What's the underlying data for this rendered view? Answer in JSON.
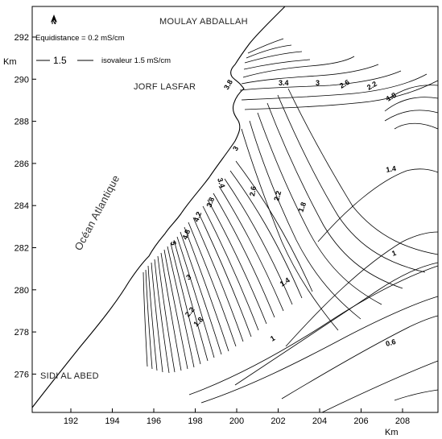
{
  "map": {
    "north_symbol": "N",
    "places": {
      "top": "MOULAY ABDALLAH",
      "port": "JORF LASFAR",
      "bottom": "SIDI AL ABED",
      "ocean": "Océan Atlantique"
    },
    "legend": {
      "equidistance": "Equidistance = 0.2 mS/cm",
      "sample_value": "1.5",
      "sample_text": "isovaleur 1.5 mS/cm"
    },
    "axes": {
      "x_unit": "Km",
      "y_unit": "Km",
      "x_ticks": [
        "192",
        "194",
        "196",
        "198",
        "200",
        "202",
        "204",
        "206",
        "208"
      ],
      "y_ticks": [
        "292",
        "290",
        "288",
        "286",
        "284",
        "282",
        "280",
        "278",
        "276"
      ]
    },
    "contour_labels": {
      "c3_4_north": "3.4",
      "c3_north": "3",
      "c2_6_north": "2.6",
      "c2_2_north": "2.2",
      "c1_8_north": "1.8",
      "c3_8_north": "3.8",
      "c3_coast": "3",
      "c3_4_coast": "3.4",
      "c2_6_mid": "2.6",
      "c2_2_mid": "2.2",
      "c1_8_mid": "1.8",
      "c3_8_coast": "3.8",
      "c4_2": "4.2",
      "c4_8": "4.8",
      "c5": "5",
      "c1_4_east": "1.4",
      "c1_east": "1",
      "c1_4_mid": "1.4",
      "c3_south": "3",
      "c2_2_south": "2.2",
      "c1_8_south": "1.8",
      "c1_south": "1",
      "c0_6": "0.6"
    }
  }
}
